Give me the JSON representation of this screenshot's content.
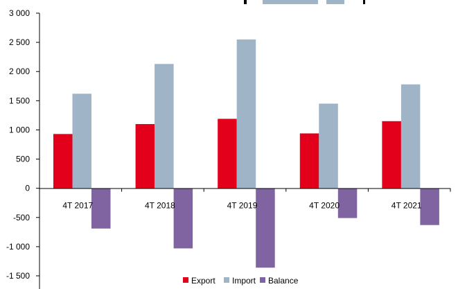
{
  "chart_data": {
    "type": "bar",
    "categories": [
      "4T 2017",
      "4T 2018",
      "4T 2019",
      "4T 2020",
      "4T 2021"
    ],
    "series": [
      {
        "name": "Export",
        "values": [
          930,
          1100,
          1190,
          940,
          1150
        ],
        "color": "#e2001a"
      },
      {
        "name": "Import",
        "values": [
          1620,
          2130,
          2550,
          1450,
          1780
        ],
        "color": "#9fb4c6"
      },
      {
        "name": "Balance",
        "values": [
          -690,
          -1030,
          -1360,
          -510,
          -630
        ],
        "color": "#8064a2"
      }
    ],
    "ylim": [
      -1500,
      3000
    ],
    "yticks": [
      3000,
      2500,
      2000,
      1500,
      1000,
      500,
      0,
      -500,
      -1000,
      -1500
    ],
    "ytick_labels": [
      "3 000",
      "2 500",
      "2 000",
      "1 500",
      "1 000",
      "500",
      "0",
      "-500",
      "-1 000",
      "-1 500"
    ],
    "legend_position": "bottom",
    "grid": false
  }
}
